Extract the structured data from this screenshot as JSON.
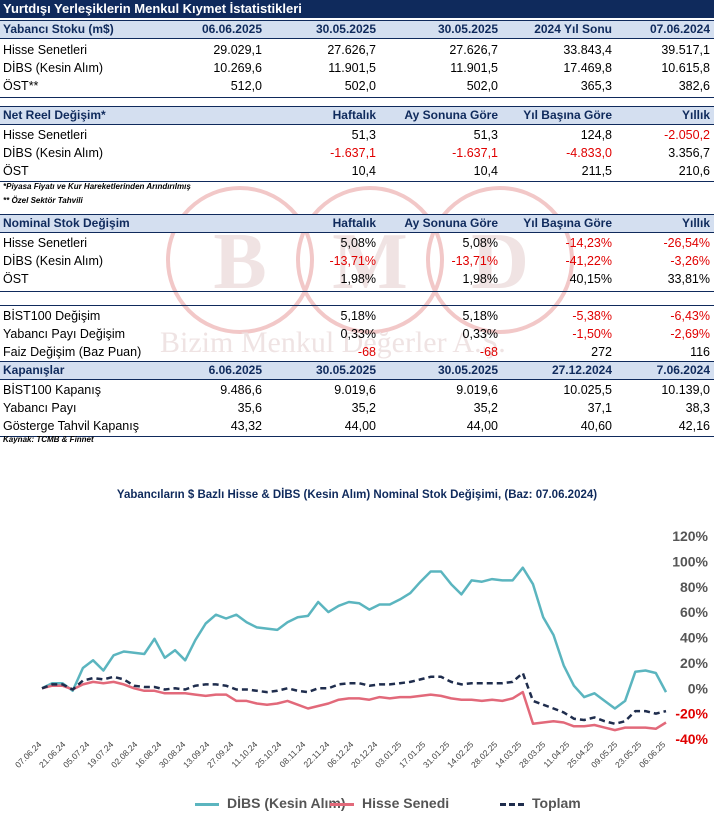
{
  "title": "Yurtdışı Yerleşiklerin Menkul Kıymet İstatistikleri",
  "watermark": "Bizim Menkul Değerler A.Ş.",
  "watermark_letters": [
    "B",
    "M",
    "D"
  ],
  "stock": {
    "header": [
      "Yabancı Stoku (m$)",
      "06.06.2025",
      "30.05.2025",
      "30.05.2025",
      "2024 Yıl Sonu",
      "07.06.2024"
    ],
    "rows": [
      [
        "Hisse Senetleri",
        "29.029,1",
        "27.626,7",
        "27.626,7",
        "33.843,4",
        "39.517,1"
      ],
      [
        "DİBS (Kesin Alım)",
        "10.269,6",
        "11.901,5",
        "11.901,5",
        "17.469,8",
        "10.615,8"
      ],
      [
        "ÖST**",
        "512,0",
        "502,0",
        "502,0",
        "365,3",
        "382,6"
      ]
    ]
  },
  "real_change": {
    "header": [
      "Net Reel Değişim*",
      "Haftalık",
      "Ay Sonuna Göre",
      "Yıl Başına Göre",
      "Yıllık"
    ],
    "rows": [
      [
        "Hisse Senetleri",
        "51,3",
        "51,3",
        "124,8",
        "-2.050,2"
      ],
      [
        "DİBS (Kesin Alım)",
        "-1.637,1",
        "-1.637,1",
        "-4.833,0",
        "3.356,7"
      ],
      [
        "ÖST",
        "10,4",
        "10,4",
        "211,5",
        "210,6"
      ]
    ],
    "notes": [
      "*Piyasa Fiyatı ve Kur Hareketlerinden Arındırılmış",
      "** Özel Sektör Tahvili"
    ]
  },
  "nominal_change": {
    "header": [
      "Nominal Stok Değişim",
      "Haftalık",
      "Ay Sonuna Göre",
      "Yıl Başına Göre",
      "Yıllık"
    ],
    "rows": [
      [
        "Hisse Senetleri",
        "5,08%",
        "5,08%",
        "-14,23%",
        "-26,54%"
      ],
      [
        "DİBS (Kesin Alım)",
        "-13,71%",
        "-13,71%",
        "-41,22%",
        "-3,26%"
      ],
      [
        "ÖST",
        "1,98%",
        "1,98%",
        "40,15%",
        "33,81%"
      ]
    ]
  },
  "bist_changes": {
    "rows": [
      [
        "BİST100 Değişim",
        "5,18%",
        "5,18%",
        "-5,38%",
        "-6,43%"
      ],
      [
        "Yabancı Payı Değişim",
        "0,33%",
        "0,33%",
        "-1,50%",
        "-2,69%"
      ],
      [
        "Faiz Değişim (Baz Puan)",
        "-68",
        "-68",
        "272",
        "116"
      ]
    ]
  },
  "closings": {
    "header": [
      "Kapanışlar",
      "6.06.2025",
      "30.05.2025",
      "30.05.2025",
      "27.12.2024",
      "7.06.2024"
    ],
    "rows": [
      [
        "BİST100 Kapanış",
        "9.486,6",
        "9.019,6",
        "9.019,6",
        "10.025,5",
        "10.139,0"
      ],
      [
        "Yabancı Payı",
        "35,6",
        "35,2",
        "35,2",
        "37,1",
        "38,3"
      ],
      [
        "Gösterge Tahvil Kapanış",
        "43,32",
        "44,00",
        "44,00",
        "40,60",
        "42,16"
      ]
    ],
    "source": "Kaynak: TCMB & Finnet"
  },
  "colors": {
    "navy": "#0f2a5c",
    "header_bg": "#d4dff0",
    "negative": "#e00000",
    "dibs": "#5bb5bf",
    "hisse": "#e2697a",
    "toplam": "#1f2d4d"
  },
  "chart_data": {
    "type": "line",
    "title": "Yabancıların $ Bazlı Hisse & DİBS (Kesin Alım) Nominal Stok Değişimi, (Baz: 07.06.2024)",
    "x_tick_labels": [
      "07.06.24",
      "21.06.24",
      "05.07.24",
      "19.07.24",
      "02.08.24",
      "16.08.24",
      "30.08.24",
      "13.09.24",
      "27.09.24",
      "11.10.24",
      "25.10.24",
      "08.11.24",
      "22.11.24",
      "06.12.24",
      "20.12.24",
      "03.01.25",
      "17.01.25",
      "31.01.25",
      "14.02.25",
      "28.02.25",
      "14.03.25",
      "28.03.25",
      "11.04.25",
      "25.04.25",
      "09.05.25",
      "23.05.25",
      "06.06.25"
    ],
    "y_tick_labels": [
      "120%",
      "100%",
      "80%",
      "60%",
      "40%",
      "20%",
      "0%",
      "-20%",
      "-40%"
    ],
    "y_ticks": [
      120,
      100,
      80,
      60,
      40,
      20,
      0,
      -20,
      -40
    ],
    "ylim": [
      -40,
      120
    ],
    "legend_position": "bottom",
    "series": [
      {
        "name": "DİBS (Kesin Alım)",
        "color": "#5bb5bf",
        "dash": false,
        "values": [
          0,
          4,
          4,
          -2,
          16,
          22,
          14,
          26,
          29,
          28,
          27,
          39,
          24,
          30,
          22,
          38,
          51,
          58,
          55,
          58,
          52,
          48,
          47,
          46,
          52,
          56,
          57,
          68,
          60,
          65,
          68,
          67,
          62,
          66,
          66,
          70,
          75,
          84,
          92,
          92,
          82,
          74,
          85,
          84,
          86,
          85,
          85,
          95,
          82,
          56,
          42,
          18,
          2,
          -7,
          -4,
          -10,
          -16,
          -10,
          13,
          14,
          12,
          -3
        ]
      },
      {
        "name": "Hisse Senedi",
        "color": "#e2697a",
        "dash": false,
        "values": [
          0,
          2,
          2,
          -1,
          3,
          5,
          4,
          5,
          3,
          0,
          -2,
          -2,
          -4,
          -4,
          -4,
          -5,
          -6,
          -5,
          -5,
          -10,
          -10,
          -12,
          -13,
          -12,
          -10,
          -13,
          -16,
          -14,
          -12,
          -9,
          -8,
          -8,
          -9,
          -7,
          -8,
          -7,
          -7,
          -6,
          -5,
          -6,
          -8,
          -9,
          -9,
          -10,
          -9,
          -10,
          -8,
          -3,
          -28,
          -27,
          -26,
          -27,
          -30,
          -30,
          -29,
          -31,
          -33,
          -31,
          -31,
          -31,
          -32,
          -27
        ]
      },
      {
        "name": "Toplam",
        "color": "#1f2d4d",
        "dash": true,
        "values": [
          0,
          3,
          3,
          -1,
          6,
          8,
          7,
          9,
          7,
          2,
          1,
          1,
          -1,
          0,
          -1,
          2,
          3,
          3,
          2,
          -1,
          -1,
          -2,
          -3,
          -2,
          0,
          -2,
          -3,
          0,
          0,
          3,
          4,
          4,
          2,
          3,
          3,
          4,
          5,
          7,
          9,
          9,
          5,
          3,
          4,
          4,
          4,
          4,
          5,
          12,
          -10,
          -13,
          -16,
          -19,
          -24,
          -25,
          -23,
          -26,
          -28,
          -26,
          -18,
          -18,
          -20,
          -18
        ]
      }
    ]
  }
}
